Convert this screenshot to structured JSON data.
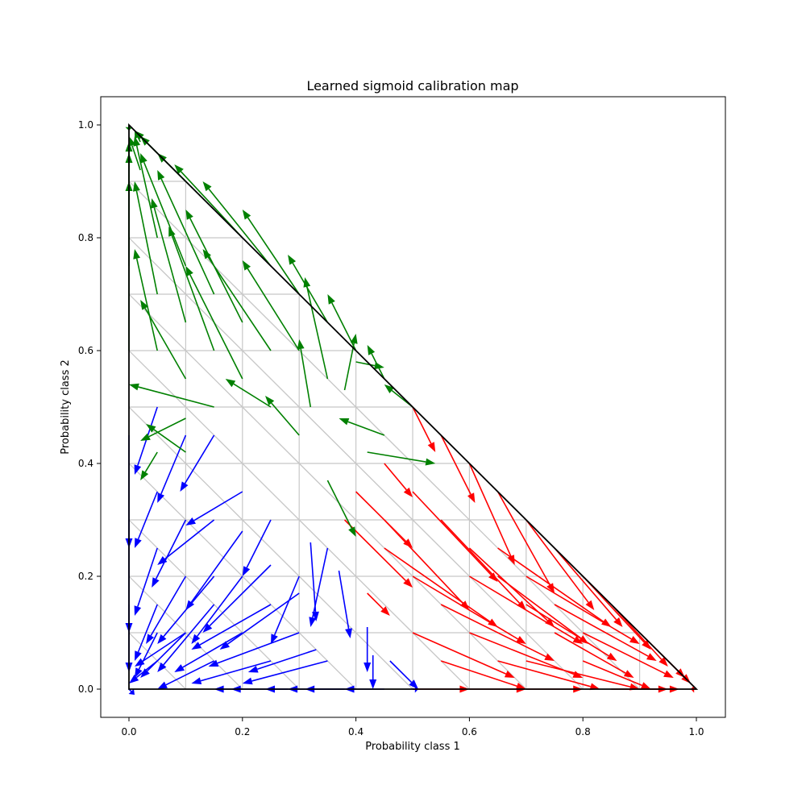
{
  "chart_data": {
    "type": "quiver",
    "title": "Learned sigmoid calibration map",
    "xlabel": "Probability class 1",
    "ylabel": "Probability class 2",
    "xlim": [
      -0.05,
      1.05
    ],
    "ylim": [
      -0.05,
      1.05
    ],
    "xticks": [
      "0.0",
      "0.2",
      "0.4",
      "0.6",
      "0.8",
      "1.0"
    ],
    "yticks": [
      "0.0",
      "0.2",
      "0.4",
      "0.6",
      "0.8",
      "1.0"
    ],
    "grid": false,
    "simplex_vertices": [
      [
        0,
        0
      ],
      [
        1,
        0
      ],
      [
        0,
        1
      ]
    ],
    "mesh_step": 0.1,
    "series": [
      {
        "color": "#0000ff",
        "arrows": [
          [
            0.0,
            0.0,
            0.01,
            -0.01
          ],
          [
            0.05,
            0.05,
            -0.05,
            -0.04
          ],
          [
            0.1,
            0.1,
            -0.08,
            -0.08
          ],
          [
            0.15,
            0.15,
            -0.1,
            -0.12
          ],
          [
            0.2,
            0.2,
            -0.09,
            -0.12
          ],
          [
            0.05,
            0.15,
            -0.04,
            -0.1
          ],
          [
            0.05,
            0.25,
            -0.04,
            -0.12
          ],
          [
            0.1,
            0.2,
            -0.07,
            -0.12
          ],
          [
            0.15,
            0.05,
            -0.1,
            -0.05
          ],
          [
            0.25,
            0.05,
            -0.14,
            -0.04
          ],
          [
            0.2,
            0.1,
            -0.12,
            -0.07
          ],
          [
            0.25,
            0.15,
            -0.14,
            -0.08
          ],
          [
            0.3,
            0.1,
            -0.16,
            -0.06
          ],
          [
            0.35,
            0.05,
            -0.15,
            -0.04
          ],
          [
            0.4,
            0.0,
            -0.12,
            0.0
          ],
          [
            0.45,
            0.0,
            -0.07,
            0.0
          ],
          [
            0.3,
            0.2,
            -0.05,
            -0.12
          ],
          [
            0.35,
            0.25,
            -0.03,
            -0.14
          ],
          [
            0.32,
            0.26,
            0.01,
            -0.14
          ],
          [
            0.37,
            0.21,
            0.02,
            -0.12
          ],
          [
            0.42,
            0.11,
            0.0,
            -0.08
          ],
          [
            0.43,
            0.06,
            0.0,
            -0.06
          ],
          [
            0.25,
            0.3,
            -0.05,
            -0.1
          ],
          [
            0.2,
            0.35,
            -0.1,
            -0.06
          ],
          [
            0.15,
            0.45,
            -0.06,
            -0.1
          ],
          [
            0.1,
            0.45,
            -0.05,
            -0.12
          ],
          [
            0.05,
            0.5,
            -0.04,
            -0.12
          ],
          [
            0.0,
            0.45,
            0.0,
            -0.2
          ],
          [
            0.0,
            0.3,
            0.0,
            -0.2
          ],
          [
            0.0,
            0.15,
            0.0,
            -0.12
          ],
          [
            0.05,
            0.35,
            -0.04,
            -0.1
          ],
          [
            0.15,
            0.3,
            -0.1,
            -0.08
          ],
          [
            0.1,
            0.3,
            -0.06,
            -0.12
          ],
          [
            0.1,
            0.1,
            -0.09,
            -0.06
          ],
          [
            0.05,
            0.1,
            -0.04,
            -0.08
          ],
          [
            0.25,
            0.22,
            -0.12,
            -0.12
          ],
          [
            0.2,
            0.28,
            -0.1,
            -0.14
          ],
          [
            0.3,
            0.17,
            -0.14,
            -0.1
          ],
          [
            0.15,
            0.2,
            -0.1,
            -0.12
          ],
          [
            0.33,
            0.07,
            -0.12,
            -0.04
          ],
          [
            0.5,
            0.0,
            0.01,
            0.0
          ],
          [
            0.46,
            0.05,
            0.05,
            -0.05
          ],
          [
            0.38,
            0.0,
            -0.07,
            0.0
          ],
          [
            0.28,
            0.0,
            -0.1,
            0.0
          ],
          [
            0.3,
            0.0,
            -0.06,
            0.0
          ],
          [
            0.2,
            0.0,
            -0.05,
            0.0
          ]
        ]
      },
      {
        "color": "#ff0000",
        "arrows": [
          [
            1.0,
            0.0,
            -0.01,
            0.0
          ],
          [
            0.95,
            0.05,
            0.04,
            -0.04
          ],
          [
            0.9,
            0.1,
            0.08,
            -0.08
          ],
          [
            0.85,
            0.15,
            0.1,
            -0.11
          ],
          [
            0.8,
            0.2,
            0.12,
            -0.13
          ],
          [
            0.75,
            0.25,
            0.12,
            -0.14
          ],
          [
            0.7,
            0.3,
            0.12,
            -0.16
          ],
          [
            0.65,
            0.35,
            0.1,
            -0.18
          ],
          [
            0.6,
            0.4,
            0.08,
            -0.18
          ],
          [
            0.55,
            0.45,
            0.06,
            -0.12
          ],
          [
            0.5,
            0.5,
            0.04,
            -0.08
          ],
          [
            0.45,
            0.4,
            0.05,
            -0.06
          ],
          [
            0.4,
            0.35,
            0.1,
            -0.1
          ],
          [
            0.38,
            0.3,
            0.12,
            -0.12
          ],
          [
            0.45,
            0.3,
            0.15,
            -0.16
          ],
          [
            0.5,
            0.35,
            0.15,
            -0.16
          ],
          [
            0.55,
            0.3,
            0.15,
            -0.16
          ],
          [
            0.6,
            0.25,
            0.15,
            -0.14
          ],
          [
            0.65,
            0.2,
            0.16,
            -0.12
          ],
          [
            0.7,
            0.15,
            0.16,
            -0.1
          ],
          [
            0.75,
            0.1,
            0.14,
            -0.08
          ],
          [
            0.8,
            0.05,
            0.12,
            -0.05
          ],
          [
            0.85,
            0.0,
            0.1,
            0.0
          ],
          [
            0.55,
            0.05,
            0.15,
            -0.05
          ],
          [
            0.5,
            0.1,
            0.18,
            -0.08
          ],
          [
            0.55,
            0.15,
            0.2,
            -0.1
          ],
          [
            0.6,
            0.1,
            0.2,
            -0.08
          ],
          [
            0.65,
            0.05,
            0.18,
            -0.05
          ],
          [
            0.5,
            0.2,
            0.2,
            -0.12
          ],
          [
            0.45,
            0.25,
            0.2,
            -0.14
          ],
          [
            0.6,
            0.2,
            0.2,
            -0.12
          ],
          [
            0.7,
            0.05,
            0.2,
            -0.05
          ],
          [
            0.75,
            0.15,
            0.18,
            -0.1
          ],
          [
            0.8,
            0.1,
            0.16,
            -0.08
          ],
          [
            0.65,
            0.25,
            0.2,
            -0.14
          ],
          [
            0.7,
            0.2,
            0.2,
            -0.12
          ],
          [
            0.42,
            0.17,
            0.04,
            -0.04
          ],
          [
            0.5,
            0.0,
            0.1,
            0.0
          ],
          [
            0.6,
            0.0,
            0.1,
            0.0
          ],
          [
            0.7,
            0.0,
            0.1,
            0.0
          ],
          [
            0.9,
            0.0,
            0.07,
            0.0
          ]
        ]
      },
      {
        "color": "#008000",
        "arrows": [
          [
            0.0,
            1.0,
            0.0,
            -0.01
          ],
          [
            0.05,
            0.95,
            -0.04,
            0.04
          ],
          [
            0.1,
            0.9,
            -0.08,
            0.08
          ],
          [
            0.15,
            0.85,
            -0.1,
            0.1
          ],
          [
            0.2,
            0.8,
            -0.12,
            0.13
          ],
          [
            0.25,
            0.75,
            -0.12,
            0.15
          ],
          [
            0.3,
            0.7,
            -0.1,
            0.15
          ],
          [
            0.35,
            0.65,
            -0.07,
            0.12
          ],
          [
            0.4,
            0.6,
            -0.05,
            0.1
          ],
          [
            0.45,
            0.55,
            -0.03,
            0.06
          ],
          [
            0.5,
            0.5,
            -0.05,
            0.04
          ],
          [
            0.45,
            0.45,
            -0.08,
            0.03
          ],
          [
            0.3,
            0.45,
            -0.06,
            0.07
          ],
          [
            0.25,
            0.5,
            -0.08,
            0.05
          ],
          [
            0.3,
            0.6,
            -0.1,
            0.16
          ],
          [
            0.25,
            0.6,
            -0.12,
            0.18
          ],
          [
            0.2,
            0.65,
            -0.1,
            0.2
          ],
          [
            0.15,
            0.7,
            -0.1,
            0.22
          ],
          [
            0.1,
            0.75,
            -0.08,
            0.2
          ],
          [
            0.05,
            0.8,
            -0.04,
            0.18
          ],
          [
            0.05,
            0.7,
            -0.04,
            0.2
          ],
          [
            0.1,
            0.65,
            -0.06,
            0.22
          ],
          [
            0.15,
            0.6,
            -0.08,
            0.22
          ],
          [
            0.2,
            0.55,
            -0.1,
            0.2
          ],
          [
            0.1,
            0.55,
            -0.08,
            0.14
          ],
          [
            0.05,
            0.6,
            -0.04,
            0.18
          ],
          [
            0.0,
            0.6,
            0.0,
            0.3
          ],
          [
            0.0,
            0.75,
            0.0,
            0.2
          ],
          [
            0.0,
            0.85,
            0.0,
            0.12
          ],
          [
            0.02,
            0.92,
            -0.02,
            0.06
          ],
          [
            0.15,
            0.5,
            -0.15,
            0.04
          ],
          [
            0.1,
            0.48,
            -0.08,
            -0.04
          ],
          [
            0.1,
            0.42,
            -0.07,
            0.05
          ],
          [
            0.05,
            0.42,
            -0.03,
            -0.05
          ],
          [
            0.35,
            0.37,
            0.05,
            -0.1
          ],
          [
            0.42,
            0.42,
            0.12,
            -0.02
          ],
          [
            0.38,
            0.53,
            0.02,
            0.1
          ],
          [
            0.32,
            0.5,
            -0.02,
            0.12
          ],
          [
            0.35,
            0.55,
            -0.04,
            0.18
          ],
          [
            0.4,
            0.58,
            0.05,
            -0.01
          ],
          [
            0.02,
            0.97,
            -0.01,
            0.02
          ]
        ]
      }
    ]
  }
}
